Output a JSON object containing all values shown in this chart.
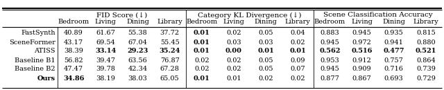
{
  "title_row": [
    "FID Score (↓)",
    "Category KL Divergence (↓)",
    "Scene Classification Accuracy"
  ],
  "sub_cols": [
    "Bedroom",
    "Living",
    "Dining",
    "Library"
  ],
  "methods": [
    "FastSynth",
    "SceneFormer",
    "ATISS",
    "Baseline B1",
    "Baseline B2",
    "Ours"
  ],
  "fid": [
    [
      "40.89",
      "61.67",
      "55.38",
      "37.72"
    ],
    [
      "43.17",
      "69.54",
      "67.04",
      "55.45"
    ],
    [
      "38.39",
      "33.14",
      "29.23",
      "35.24"
    ],
    [
      "56.82",
      "39.47",
      "63.56",
      "76.87"
    ],
    [
      "47.47",
      "39.78",
      "42.34",
      "67.28"
    ],
    [
      "34.86",
      "38.19",
      "38.03",
      "65.05"
    ]
  ],
  "kl": [
    [
      "0.01",
      "0.02",
      "0.05",
      "0.04"
    ],
    [
      "0.01",
      "0.03",
      "0.03",
      "0.02"
    ],
    [
      "0.01",
      "0.00",
      "0.01",
      "0.01"
    ],
    [
      "0.02",
      "0.02",
      "0.05",
      "0.09"
    ],
    [
      "0.02",
      "0.02",
      "0.05",
      "0.07"
    ],
    [
      "0.01",
      "0.01",
      "0.02",
      "0.02"
    ]
  ],
  "sca": [
    [
      "0.883",
      "0.945",
      "0.935",
      "0.815"
    ],
    [
      "0.945",
      "0.972",
      "0.941",
      "0.880"
    ],
    [
      "0.562",
      "0.516",
      "0.477",
      "0.521"
    ],
    [
      "0.953",
      "0.912",
      "0.757",
      "0.864"
    ],
    [
      "0.945",
      "0.909",
      "0.716",
      "0.739"
    ],
    [
      "0.877",
      "0.867",
      "0.693",
      "0.729"
    ]
  ],
  "bold_fid": [
    [
      false,
      false,
      false,
      false
    ],
    [
      false,
      false,
      false,
      false
    ],
    [
      false,
      true,
      true,
      true
    ],
    [
      false,
      false,
      false,
      false
    ],
    [
      false,
      false,
      false,
      false
    ],
    [
      true,
      false,
      false,
      false
    ]
  ],
  "bold_kl": [
    [
      true,
      false,
      false,
      false
    ],
    [
      true,
      false,
      false,
      false
    ],
    [
      true,
      true,
      true,
      true
    ],
    [
      false,
      false,
      false,
      false
    ],
    [
      false,
      false,
      false,
      false
    ],
    [
      true,
      false,
      false,
      false
    ]
  ],
  "bold_sca": [
    [
      false,
      false,
      false,
      false
    ],
    [
      false,
      false,
      false,
      false
    ],
    [
      true,
      true,
      true,
      true
    ],
    [
      false,
      false,
      false,
      false
    ],
    [
      false,
      false,
      false,
      false
    ],
    [
      false,
      false,
      false,
      false
    ]
  ],
  "bg_color": "#ffffff",
  "font_size": 7.0,
  "header_font_size": 7.5
}
